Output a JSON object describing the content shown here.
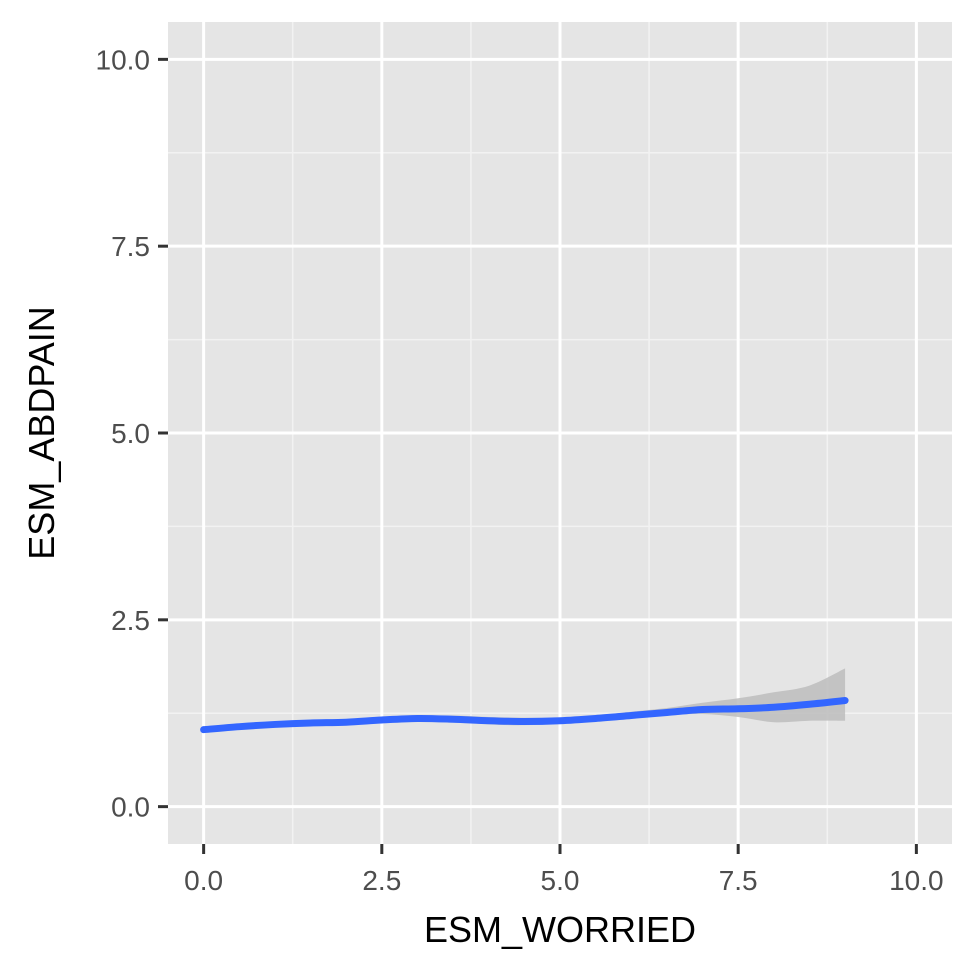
{
  "chart_data": {
    "type": "line",
    "title": "",
    "xlabel": "ESM_WORRIED",
    "ylabel": "ESM_ABDPAIN",
    "xlim": [
      -0.5,
      10.5
    ],
    "ylim": [
      -0.5,
      10.5
    ],
    "x_ticks": [
      0,
      2.5,
      5,
      7.5,
      10
    ],
    "x_tick_labels": [
      "0.0",
      "2.5",
      "5.0",
      "7.5",
      "10.0"
    ],
    "y_ticks": [
      0,
      2.5,
      5,
      7.5,
      10
    ],
    "y_tick_labels": [
      "0.0",
      "2.5",
      "5.0",
      "7.5",
      "10.0"
    ],
    "grid": true,
    "legend": "none",
    "series": [
      {
        "kind": "smooth",
        "x": [
          0,
          0.5,
          1,
          1.5,
          2,
          2.5,
          3,
          3.5,
          4,
          4.5,
          5,
          5.5,
          6,
          6.5,
          7,
          7.5,
          8,
          8.5,
          9
        ],
        "y": [
          1.03,
          1.07,
          1.1,
          1.12,
          1.13,
          1.16,
          1.18,
          1.17,
          1.15,
          1.14,
          1.15,
          1.18,
          1.22,
          1.26,
          1.3,
          1.31,
          1.33,
          1.37,
          1.42
        ],
        "ci_lower": [
          1.0,
          1.05,
          1.08,
          1.1,
          1.11,
          1.14,
          1.16,
          1.14,
          1.1,
          1.09,
          1.11,
          1.14,
          1.18,
          1.22,
          1.24,
          1.2,
          1.13,
          1.15,
          1.15
        ],
        "ci_upper": [
          1.06,
          1.09,
          1.12,
          1.14,
          1.15,
          1.18,
          1.21,
          1.22,
          1.2,
          1.19,
          1.19,
          1.22,
          1.27,
          1.32,
          1.39,
          1.45,
          1.53,
          1.62,
          1.85
        ]
      }
    ],
    "colors": {
      "line": "#3366ff",
      "ribbon": "#bdbdbd",
      "panel": "#e5e5e5",
      "grid_major": "#ffffff",
      "grid_minor": "#f2f2f2",
      "tick": "#333333"
    }
  }
}
